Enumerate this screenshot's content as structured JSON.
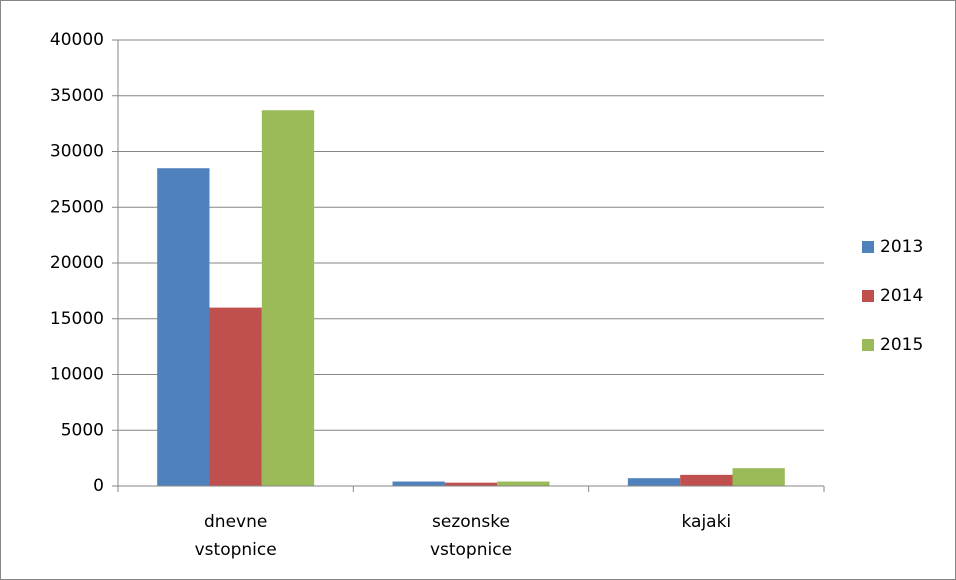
{
  "chart_data": {
    "type": "bar",
    "categories": [
      "dnevne vstopnice",
      "sezonske vstopnice",
      "kajaki"
    ],
    "series": [
      {
        "name": "2013",
        "color": "#4f81bd",
        "values": [
          28500,
          400,
          700
        ]
      },
      {
        "name": "2014",
        "color": "#c0504d",
        "values": [
          16000,
          300,
          1000
        ]
      },
      {
        "name": "2015",
        "color": "#9bbb59",
        "values": [
          33700,
          400,
          1600
        ]
      }
    ],
    "ylim": [
      0,
      40000
    ],
    "yticks": [
      0,
      5000,
      10000,
      15000,
      20000,
      25000,
      30000,
      35000,
      40000
    ],
    "grid": true,
    "legend": "right"
  }
}
